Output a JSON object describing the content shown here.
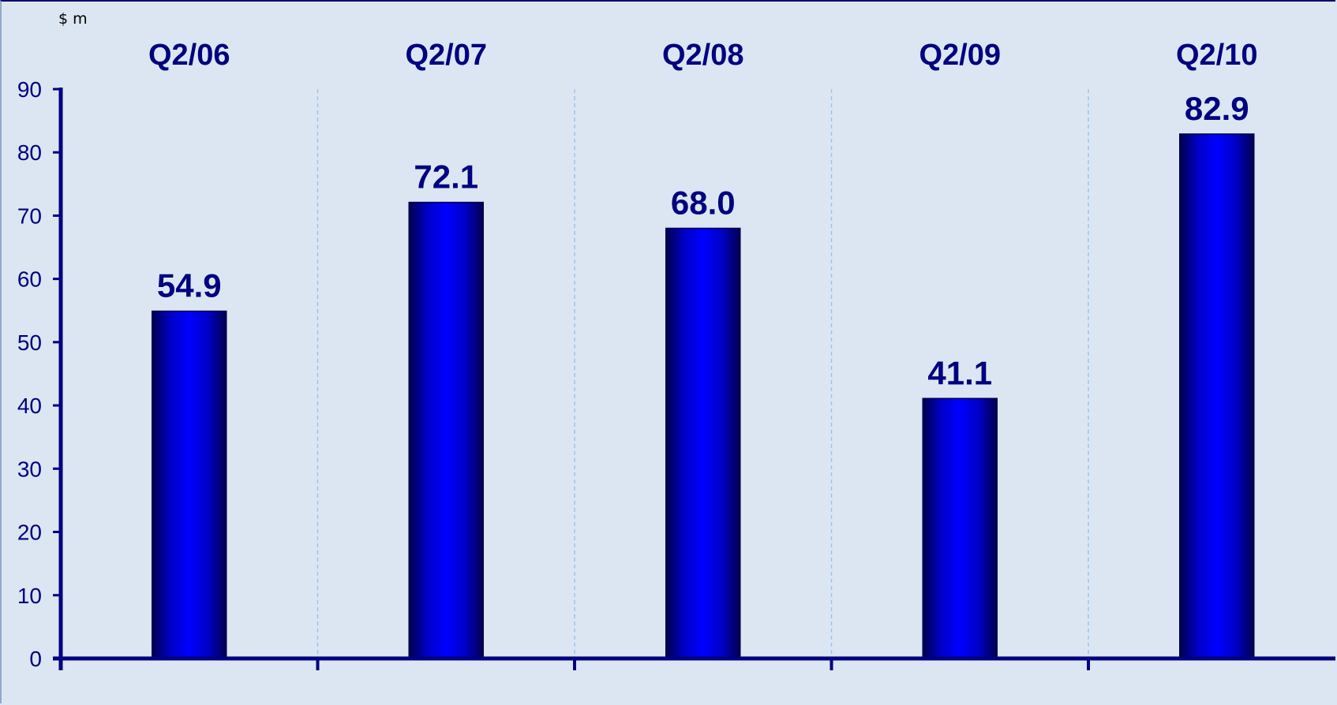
{
  "chart_data": {
    "type": "bar",
    "unit_label": "$ m",
    "categories": [
      "Q2/06",
      "Q2/07",
      "Q2/08",
      "Q2/09",
      "Q2/10"
    ],
    "values": [
      54.9,
      72.1,
      68.0,
      41.1,
      82.9
    ],
    "value_labels": [
      "54.9",
      "72.1",
      "68.0",
      "41.1",
      "82.9"
    ],
    "yticks": [
      "0",
      "10",
      "20",
      "30",
      "40",
      "50",
      "60",
      "70",
      "80",
      "90"
    ],
    "ylim": [
      0,
      90
    ],
    "category_labels_position": "top",
    "grid": "vertical-dashed-separators",
    "colors": {
      "bar": "#0000ff",
      "bar_edge": "#00004d",
      "axis": "#000080",
      "text": "#000080",
      "gridline": "#9cc3ee",
      "background": "#dce6f2"
    }
  }
}
